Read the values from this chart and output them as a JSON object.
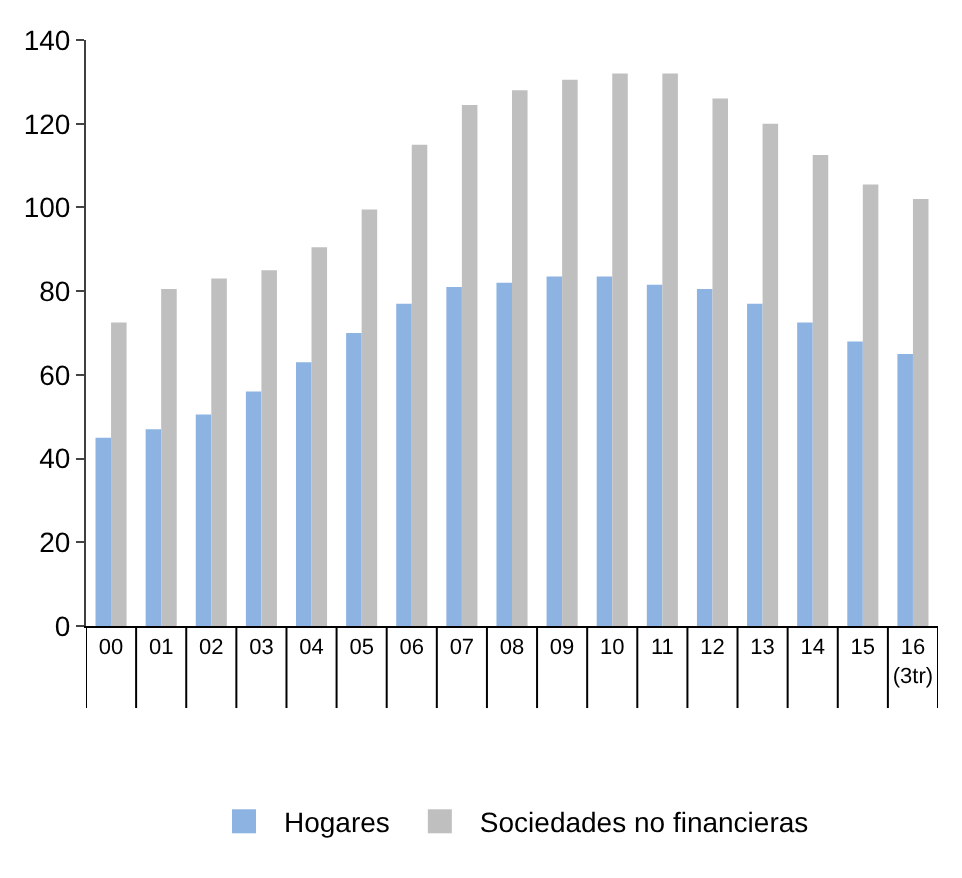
{
  "chart_data": {
    "type": "bar",
    "categories": [
      "00",
      "01",
      "02",
      "03",
      "04",
      "05",
      "06",
      "07",
      "08",
      "09",
      "10",
      "11",
      "12",
      "13",
      "14",
      "15",
      "16\n(3tr)"
    ],
    "series": [
      {
        "name": "Hogares",
        "color": "#8db3e2",
        "values": [
          45,
          47,
          50.5,
          56,
          63,
          70,
          77,
          81,
          82,
          83.5,
          83.5,
          81.5,
          80.5,
          77,
          72.5,
          68,
          65
        ]
      },
      {
        "name": "Sociedades no financieras",
        "color": "#bfbfbf",
        "values": [
          72.5,
          80.5,
          83,
          85,
          90.5,
          99.5,
          115,
          124.5,
          128,
          130.5,
          132,
          132,
          126,
          120,
          112.5,
          105.5,
          102
        ]
      }
    ],
    "ylim": [
      0,
      140
    ],
    "yticks": [
      0,
      20,
      40,
      60,
      80,
      100,
      120,
      140
    ],
    "legend": "bottom"
  }
}
